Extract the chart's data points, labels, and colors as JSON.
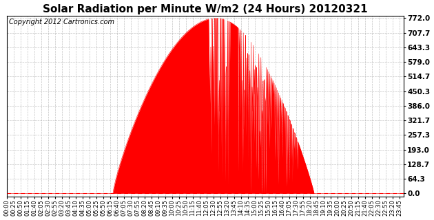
{
  "title": "Solar Radiation per Minute W/m2 (24 Hours) 20120321",
  "copyright_text": "Copyright 2012 Cartronics.com",
  "yticks": [
    0.0,
    64.3,
    128.7,
    193.0,
    257.3,
    321.7,
    386.0,
    450.3,
    514.7,
    579.0,
    643.3,
    707.7,
    772.0
  ],
  "ymin": -15.0,
  "ymax": 782.0,
  "fill_color": "#FF0000",
  "line_color": "#FF0000",
  "dashed_line_color": "#FF0000",
  "background_color": "#FFFFFF",
  "plot_bg_color": "#FFFFFF",
  "grid_color": "#AAAAAA",
  "title_fontsize": 11,
  "copyright_fontsize": 7,
  "tick_fontsize": 6,
  "ytick_fontsize": 7.5,
  "xtick_step": 25,
  "total_minutes": 1440,
  "sunrise": 385,
  "sunset": 1115,
  "peak_value": 772.0,
  "peak_time": 760
}
